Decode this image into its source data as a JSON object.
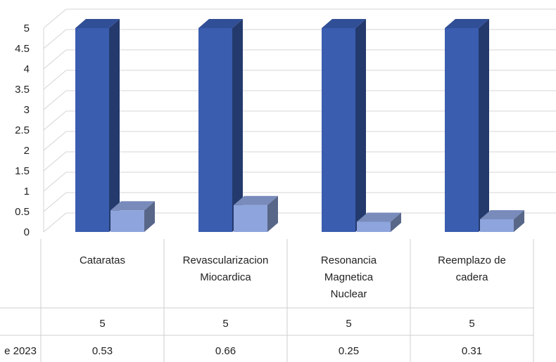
{
  "chart_data": {
    "type": "bar",
    "categories": [
      [
        "Cataratas"
      ],
      [
        "Revascularizacion",
        "Miocardica"
      ],
      [
        "Resonancia",
        "Magnetica",
        "Nuclear"
      ],
      [
        "Reemplazo de",
        "cadera"
      ]
    ],
    "series": [
      {
        "values": [
          5,
          5,
          5,
          5
        ],
        "color": "#3a5db0"
      },
      {
        "name": "e 2023",
        "values": [
          0.53,
          0.66,
          0.25,
          0.31
        ],
        "color": "#8ea4dc"
      }
    ],
    "table_rows": [
      {
        "label": "",
        "values": [
          "5",
          "5",
          "5",
          "5"
        ]
      },
      {
        "label": "e 2023",
        "values": [
          "0.53",
          "0.66",
          "0.25",
          "0.31"
        ]
      }
    ],
    "yticks": [
      "0",
      "0.5",
      "1",
      "1.5",
      "2",
      "2.5",
      "3",
      "3.5",
      "4",
      "4.5",
      "5"
    ],
    "ylim": [
      0,
      5
    ],
    "grid": true,
    "style": "3d-column-with-data-table"
  }
}
